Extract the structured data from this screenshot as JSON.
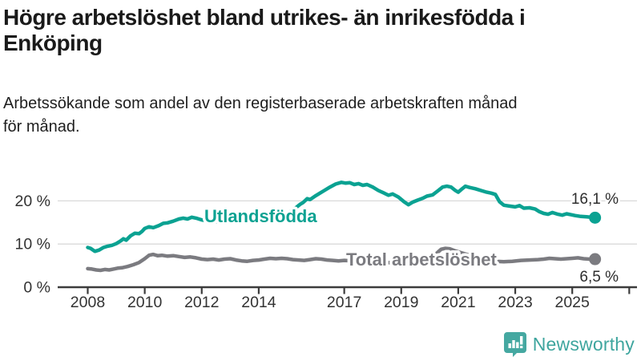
{
  "page": {
    "title_line1": "Högre arbetslöshet bland utrikes- än inrikesfödda i",
    "title_line2": "Enköping",
    "subtitle_line1": "Arbetssökande som andel av den registerbaserade arbetskraften månad",
    "subtitle_line2": "för månad."
  },
  "footer": {
    "brand": "Newsworthy",
    "logo_icon": "bar-chart-speech-bubble-icon"
  },
  "colors": {
    "accent_teal": "#0ba292",
    "series_gray": "#7b7b80",
    "brand_teal": "#45a8a1",
    "grid": "#d9d9d9",
    "axis": "#3c3c3c",
    "text": "#1a1a1a"
  },
  "chart_data": {
    "type": "line",
    "title": "Högre arbetslöshet bland utrikes- än inrikesfödda i Enköping",
    "subtitle": "Arbetssökande som andel av den registerbaserade arbetskraften månad för månad.",
    "xlabel": "",
    "ylabel": "",
    "x_unit": "year (decimal years = monthly values)",
    "xlim": [
      2007.0,
      2027.3
    ],
    "ylim": [
      0,
      27
    ],
    "grid": "horizontal-only",
    "legend": "inline-labels-on-lines",
    "yticks": [
      {
        "value": 0,
        "label": "0 %"
      },
      {
        "value": 10,
        "label": "10 %"
      },
      {
        "value": 20,
        "label": "20 %"
      }
    ],
    "xticks": [
      {
        "year": 2008,
        "label": "2008"
      },
      {
        "year": 2010,
        "label": "2010"
      },
      {
        "year": 2012,
        "label": "2012"
      },
      {
        "year": 2014,
        "label": "2014"
      },
      {
        "year": 2017,
        "label": "2017"
      },
      {
        "year": 2019,
        "label": "2019"
      },
      {
        "year": 2021,
        "label": "2021"
      },
      {
        "year": 2023,
        "label": "2023"
      },
      {
        "year": 2025,
        "label": "2025"
      },
      {
        "year": 2027,
        "label": ""
      }
    ],
    "series": [
      {
        "name": "Utlandsfödda",
        "color": "#0ba292",
        "end_label": "16,1 %",
        "end_value": 16.1,
        "points": [
          [
            2008.0,
            9.2
          ],
          [
            2008.1,
            9.0
          ],
          [
            2008.25,
            8.3
          ],
          [
            2008.4,
            8.6
          ],
          [
            2008.55,
            9.2
          ],
          [
            2008.7,
            9.5
          ],
          [
            2008.85,
            9.7
          ],
          [
            2009.0,
            10.1
          ],
          [
            2009.15,
            10.7
          ],
          [
            2009.25,
            11.2
          ],
          [
            2009.35,
            10.9
          ],
          [
            2009.5,
            11.9
          ],
          [
            2009.65,
            12.5
          ],
          [
            2009.8,
            12.4
          ],
          [
            2009.9,
            12.9
          ],
          [
            2010.0,
            13.6
          ],
          [
            2010.15,
            14.0
          ],
          [
            2010.3,
            13.8
          ],
          [
            2010.5,
            14.3
          ],
          [
            2010.65,
            14.8
          ],
          [
            2010.8,
            14.9
          ],
          [
            2011.0,
            15.3
          ],
          [
            2011.2,
            15.8
          ],
          [
            2011.35,
            16.0
          ],
          [
            2011.5,
            15.8
          ],
          [
            2011.65,
            16.2
          ],
          [
            2011.8,
            16.0
          ],
          [
            2012.0,
            15.6
          ],
          [
            2012.2,
            15.4
          ],
          [
            2012.5,
            15.2
          ],
          [
            2012.8,
            15.3
          ],
          [
            2013.1,
            15.1
          ],
          [
            2013.4,
            15.3
          ],
          [
            2013.7,
            15.2
          ],
          [
            2014.0,
            15.5
          ],
          [
            2014.3,
            15.8
          ],
          [
            2014.6,
            16.2
          ],
          [
            2014.9,
            16.8
          ],
          [
            2015.1,
            17.5
          ],
          [
            2015.3,
            18.4
          ],
          [
            2015.45,
            19.2
          ],
          [
            2015.55,
            19.6
          ],
          [
            2015.7,
            20.5
          ],
          [
            2015.8,
            20.3
          ],
          [
            2016.0,
            21.2
          ],
          [
            2016.15,
            21.8
          ],
          [
            2016.3,
            22.4
          ],
          [
            2016.5,
            23.2
          ],
          [
            2016.7,
            23.9
          ],
          [
            2016.9,
            24.3
          ],
          [
            2017.05,
            24.1
          ],
          [
            2017.2,
            24.2
          ],
          [
            2017.35,
            23.8
          ],
          [
            2017.5,
            24.0
          ],
          [
            2017.65,
            23.6
          ],
          [
            2017.8,
            23.8
          ],
          [
            2018.0,
            23.2
          ],
          [
            2018.2,
            22.4
          ],
          [
            2018.4,
            21.8
          ],
          [
            2018.55,
            21.3
          ],
          [
            2018.7,
            21.6
          ],
          [
            2018.9,
            20.9
          ],
          [
            2019.1,
            19.8
          ],
          [
            2019.25,
            19.1
          ],
          [
            2019.4,
            19.7
          ],
          [
            2019.55,
            20.1
          ],
          [
            2019.75,
            20.6
          ],
          [
            2019.9,
            21.1
          ],
          [
            2020.1,
            21.4
          ],
          [
            2020.3,
            22.4
          ],
          [
            2020.45,
            23.2
          ],
          [
            2020.6,
            23.4
          ],
          [
            2020.75,
            23.2
          ],
          [
            2020.9,
            22.4
          ],
          [
            2021.0,
            22.0
          ],
          [
            2021.1,
            22.6
          ],
          [
            2021.25,
            23.4
          ],
          [
            2021.4,
            23.1
          ],
          [
            2021.6,
            22.8
          ],
          [
            2021.8,
            22.4
          ],
          [
            2022.0,
            22.0
          ],
          [
            2022.15,
            21.8
          ],
          [
            2022.3,
            21.5
          ],
          [
            2022.45,
            19.8
          ],
          [
            2022.6,
            19.0
          ],
          [
            2022.8,
            18.8
          ],
          [
            2023.0,
            18.6
          ],
          [
            2023.15,
            18.9
          ],
          [
            2023.3,
            18.3
          ],
          [
            2023.5,
            18.4
          ],
          [
            2023.7,
            18.1
          ],
          [
            2023.85,
            17.5
          ],
          [
            2024.0,
            17.1
          ],
          [
            2024.15,
            16.9
          ],
          [
            2024.3,
            17.3
          ],
          [
            2024.5,
            16.9
          ],
          [
            2024.65,
            16.7
          ],
          [
            2024.8,
            17.0
          ],
          [
            2024.95,
            16.8
          ],
          [
            2025.1,
            16.6
          ],
          [
            2025.3,
            16.4
          ],
          [
            2025.5,
            16.3
          ],
          [
            2025.65,
            16.2
          ],
          [
            2025.8,
            16.1
          ]
        ]
      },
      {
        "name": "Total arbetslöshet",
        "color": "#7b7b80",
        "end_label": "6,5 %",
        "end_value": 6.5,
        "points": [
          [
            2008.0,
            4.3
          ],
          [
            2008.15,
            4.2
          ],
          [
            2008.3,
            4.0
          ],
          [
            2008.45,
            3.9
          ],
          [
            2008.6,
            4.1
          ],
          [
            2008.75,
            4.0
          ],
          [
            2008.9,
            4.2
          ],
          [
            2009.05,
            4.4
          ],
          [
            2009.2,
            4.5
          ],
          [
            2009.4,
            4.8
          ],
          [
            2009.6,
            5.2
          ],
          [
            2009.8,
            5.7
          ],
          [
            2010.0,
            6.6
          ],
          [
            2010.15,
            7.4
          ],
          [
            2010.3,
            7.6
          ],
          [
            2010.45,
            7.3
          ],
          [
            2010.6,
            7.4
          ],
          [
            2010.8,
            7.2
          ],
          [
            2011.0,
            7.3
          ],
          [
            2011.2,
            7.1
          ],
          [
            2011.4,
            6.9
          ],
          [
            2011.6,
            7.0
          ],
          [
            2011.8,
            6.8
          ],
          [
            2012.0,
            6.5
          ],
          [
            2012.2,
            6.4
          ],
          [
            2012.4,
            6.5
          ],
          [
            2012.6,
            6.3
          ],
          [
            2012.8,
            6.5
          ],
          [
            2013.0,
            6.6
          ],
          [
            2013.2,
            6.3
          ],
          [
            2013.4,
            6.1
          ],
          [
            2013.6,
            6.0
          ],
          [
            2013.8,
            6.2
          ],
          [
            2014.0,
            6.3
          ],
          [
            2014.2,
            6.5
          ],
          [
            2014.4,
            6.7
          ],
          [
            2014.6,
            6.6
          ],
          [
            2014.8,
            6.7
          ],
          [
            2015.0,
            6.6
          ],
          [
            2015.2,
            6.4
          ],
          [
            2015.4,
            6.3
          ],
          [
            2015.6,
            6.2
          ],
          [
            2015.8,
            6.4
          ],
          [
            2016.0,
            6.6
          ],
          [
            2016.2,
            6.5
          ],
          [
            2016.4,
            6.3
          ],
          [
            2016.6,
            6.2
          ],
          [
            2016.8,
            6.1
          ],
          [
            2017.0,
            6.2
          ],
          [
            2017.3,
            6.1
          ],
          [
            2017.6,
            6.0
          ],
          [
            2017.9,
            5.9
          ],
          [
            2018.2,
            5.8
          ],
          [
            2018.5,
            5.7
          ],
          [
            2018.8,
            5.6
          ],
          [
            2019.1,
            5.7
          ],
          [
            2019.4,
            5.8
          ],
          [
            2019.7,
            5.9
          ],
          [
            2020.0,
            6.4
          ],
          [
            2020.2,
            7.6
          ],
          [
            2020.4,
            8.8
          ],
          [
            2020.55,
            9.0
          ],
          [
            2020.7,
            8.9
          ],
          [
            2020.9,
            8.4
          ],
          [
            2021.1,
            8.0
          ],
          [
            2021.4,
            7.4
          ],
          [
            2021.7,
            6.8
          ],
          [
            2022.0,
            6.3
          ],
          [
            2022.3,
            6.0
          ],
          [
            2022.6,
            5.9
          ],
          [
            2022.9,
            6.0
          ],
          [
            2023.2,
            6.2
          ],
          [
            2023.5,
            6.3
          ],
          [
            2023.8,
            6.4
          ],
          [
            2024.0,
            6.5
          ],
          [
            2024.2,
            6.7
          ],
          [
            2024.4,
            6.6
          ],
          [
            2024.6,
            6.5
          ],
          [
            2024.8,
            6.6
          ],
          [
            2025.0,
            6.7
          ],
          [
            2025.2,
            6.8
          ],
          [
            2025.4,
            6.6
          ],
          [
            2025.6,
            6.5
          ],
          [
            2025.8,
            6.5
          ]
        ]
      }
    ]
  }
}
